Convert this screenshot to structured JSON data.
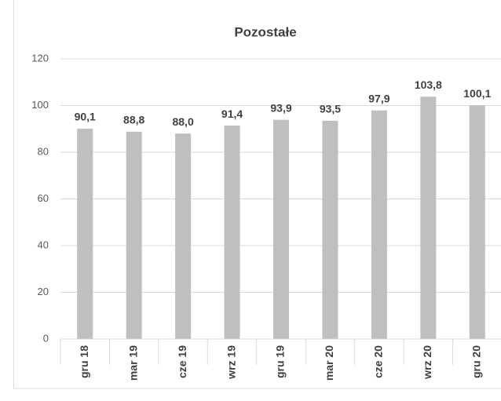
{
  "chart_data": {
    "type": "bar",
    "title": "Pozostałe",
    "categories": [
      "gru 18",
      "mar 19",
      "cze 19",
      "wrz 19",
      "gru 19",
      "mar 20",
      "cze 20",
      "wrz 20",
      "gru 20"
    ],
    "values": [
      90.1,
      88.8,
      88.0,
      91.4,
      93.9,
      93.5,
      97.9,
      103.8,
      100.1
    ],
    "value_labels": [
      "90,1",
      "88,8",
      "88,0",
      "91,4",
      "93,9",
      "93,5",
      "97,9",
      "103,8",
      "100,1"
    ],
    "color": "#bfbfbf",
    "ylim": [
      0,
      120
    ],
    "yticks": [
      0,
      20,
      40,
      60,
      80,
      100,
      120
    ],
    "grid": true
  }
}
